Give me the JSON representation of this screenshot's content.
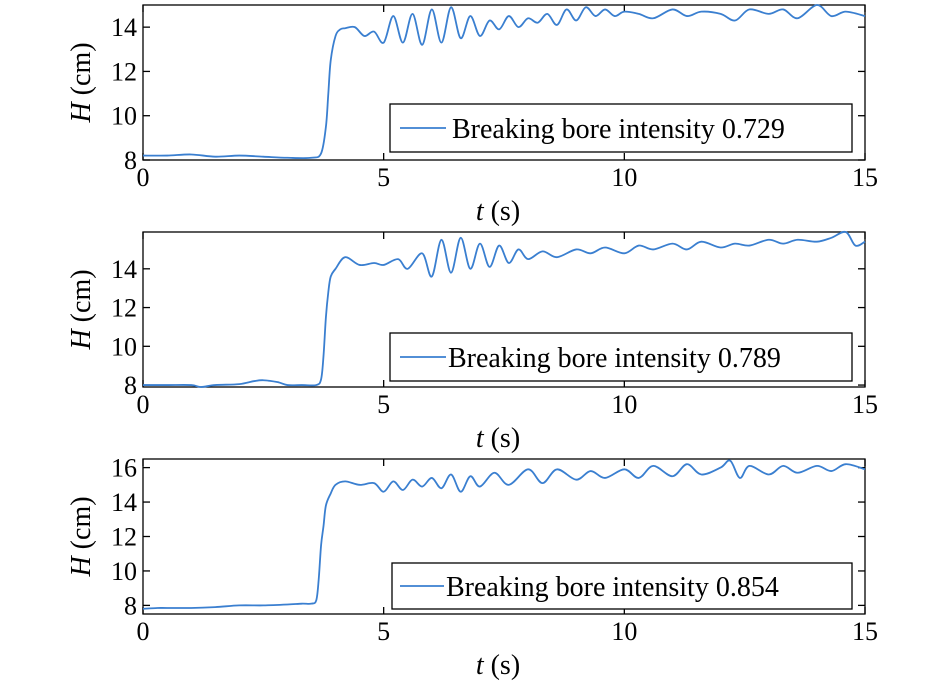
{
  "colors": {
    "series": "#3a7fd0",
    "axes": "#000000",
    "background": "#ffffff"
  },
  "chart_data": [
    {
      "type": "line",
      "xlabel_var": "t",
      "xlabel_unit": "(s)",
      "ylabel_var": "H",
      "ylabel_unit": "(cm)",
      "xlim": [
        0,
        15
      ],
      "ylim": [
        8,
        15
      ],
      "xticks": [
        "0",
        "5",
        "10",
        "15"
      ],
      "yticks": [
        "8",
        "10",
        "12",
        "14"
      ],
      "ytick_values": [
        8,
        10,
        12,
        14
      ],
      "legend_position": "bottom-right",
      "grid": false,
      "series": [
        {
          "name": "Breaking bore intensity 0.729",
          "x": [
            0,
            0.5,
            1.0,
            1.5,
            2.0,
            2.5,
            3.0,
            3.5,
            3.7,
            3.8,
            3.85,
            3.9,
            4.0,
            4.1,
            4.2,
            4.4,
            4.6,
            4.8,
            5.0,
            5.2,
            5.4,
            5.6,
            5.8,
            6.0,
            6.2,
            6.4,
            6.6,
            6.8,
            7.0,
            7.2,
            7.4,
            7.6,
            7.8,
            8.0,
            8.2,
            8.4,
            8.6,
            8.8,
            9.0,
            9.2,
            9.4,
            9.6,
            9.8,
            10.0,
            10.3,
            10.6,
            11.0,
            11.3,
            11.6,
            12.0,
            12.3,
            12.6,
            13.0,
            13.3,
            13.6,
            14.0,
            14.3,
            14.6,
            15.0
          ],
          "y": [
            8.2,
            8.2,
            8.25,
            8.15,
            8.2,
            8.15,
            8.1,
            8.1,
            8.3,
            9.5,
            11.0,
            12.5,
            13.6,
            13.9,
            13.95,
            14.0,
            13.6,
            13.8,
            13.3,
            14.5,
            13.3,
            14.6,
            13.2,
            14.8,
            13.3,
            14.9,
            13.5,
            14.5,
            13.6,
            14.3,
            13.9,
            14.5,
            14.0,
            14.4,
            14.2,
            14.6,
            14.1,
            14.8,
            14.3,
            14.9,
            14.5,
            14.8,
            14.5,
            14.7,
            14.6,
            14.4,
            14.8,
            14.5,
            14.7,
            14.6,
            14.3,
            14.8,
            14.6,
            14.8,
            14.4,
            15.0,
            14.5,
            14.7,
            14.5
          ]
        }
      ]
    },
    {
      "type": "line",
      "xlabel_var": "t",
      "xlabel_unit": "(s)",
      "ylabel_var": "H",
      "ylabel_unit": "(cm)",
      "xlim": [
        0,
        15
      ],
      "ylim": [
        7.9,
        15.9
      ],
      "xticks": [
        "0",
        "5",
        "10",
        "15"
      ],
      "yticks": [
        "8",
        "10",
        "12",
        "14"
      ],
      "ytick_values": [
        8,
        10,
        12,
        14
      ],
      "legend_position": "bottom-right",
      "grid": false,
      "series": [
        {
          "name": "Breaking bore intensity 0.789",
          "x": [
            0,
            0.5,
            1.0,
            1.2,
            1.5,
            2.0,
            2.3,
            2.5,
            2.8,
            3.0,
            3.3,
            3.6,
            3.7,
            3.75,
            3.8,
            3.85,
            3.9,
            4.0,
            4.2,
            4.5,
            4.8,
            5.0,
            5.3,
            5.5,
            5.8,
            6.0,
            6.2,
            6.4,
            6.6,
            6.8,
            7.0,
            7.2,
            7.4,
            7.6,
            7.8,
            8.0,
            8.3,
            8.6,
            9.0,
            9.3,
            9.6,
            10.0,
            10.3,
            10.6,
            11.0,
            11.3,
            11.6,
            12.0,
            12.3,
            12.6,
            13.0,
            13.3,
            13.6,
            14.0,
            14.3,
            14.6,
            14.8,
            15.0
          ],
          "y": [
            8.0,
            8.0,
            8.0,
            7.9,
            8.0,
            8.05,
            8.2,
            8.25,
            8.15,
            8.0,
            8.0,
            8.0,
            8.3,
            9.5,
            11.5,
            12.8,
            13.6,
            14.0,
            14.6,
            14.2,
            14.3,
            14.2,
            14.5,
            14.0,
            14.8,
            13.6,
            15.5,
            13.8,
            15.6,
            14.0,
            15.3,
            14.1,
            15.2,
            14.3,
            15.0,
            14.5,
            14.9,
            14.6,
            15.0,
            14.8,
            15.1,
            14.8,
            15.2,
            15.0,
            15.3,
            15.0,
            15.4,
            15.1,
            15.3,
            15.2,
            15.5,
            15.3,
            15.5,
            15.4,
            15.6,
            15.9,
            15.2,
            15.4
          ]
        }
      ]
    },
    {
      "type": "line",
      "xlabel_var": "t",
      "xlabel_unit": "(s)",
      "ylabel_var": "H",
      "ylabel_unit": "(cm)",
      "xlim": [
        0,
        15
      ],
      "ylim": [
        7.5,
        16.5
      ],
      "xticks": [
        "0",
        "5",
        "10",
        "15"
      ],
      "yticks": [
        "8",
        "10",
        "12",
        "14",
        "16"
      ],
      "ytick_values": [
        8,
        10,
        12,
        14,
        16
      ],
      "legend_position": "bottom-right",
      "grid": false,
      "series": [
        {
          "name": "Breaking bore intensity 0.854",
          "x": [
            0,
            0.3,
            0.5,
            1.0,
            1.5,
            2.0,
            2.5,
            3.0,
            3.3,
            3.5,
            3.6,
            3.65,
            3.7,
            3.75,
            3.8,
            3.9,
            4.0,
            4.2,
            4.5,
            4.8,
            5.0,
            5.2,
            5.4,
            5.6,
            5.8,
            6.0,
            6.2,
            6.4,
            6.6,
            6.8,
            7.0,
            7.3,
            7.6,
            8.0,
            8.3,
            8.6,
            9.0,
            9.3,
            9.6,
            10.0,
            10.3,
            10.6,
            11.0,
            11.3,
            11.6,
            12.0,
            12.2,
            12.4,
            12.6,
            13.0,
            13.3,
            13.6,
            14.0,
            14.3,
            14.6,
            15.0
          ],
          "y": [
            7.8,
            7.85,
            7.85,
            7.85,
            7.9,
            8.0,
            8.0,
            8.05,
            8.1,
            8.1,
            8.3,
            9.5,
            11.5,
            12.6,
            13.8,
            14.5,
            15.0,
            15.2,
            15.0,
            15.1,
            14.6,
            15.2,
            14.7,
            15.3,
            14.9,
            15.4,
            14.8,
            15.6,
            14.6,
            15.5,
            14.9,
            15.7,
            15.0,
            15.9,
            15.1,
            15.9,
            15.3,
            15.8,
            15.4,
            15.9,
            15.4,
            16.1,
            15.5,
            16.2,
            15.6,
            16.0,
            16.4,
            15.4,
            16.1,
            15.6,
            16.1,
            15.7,
            16.1,
            15.8,
            16.2,
            15.9
          ]
        }
      ]
    }
  ]
}
